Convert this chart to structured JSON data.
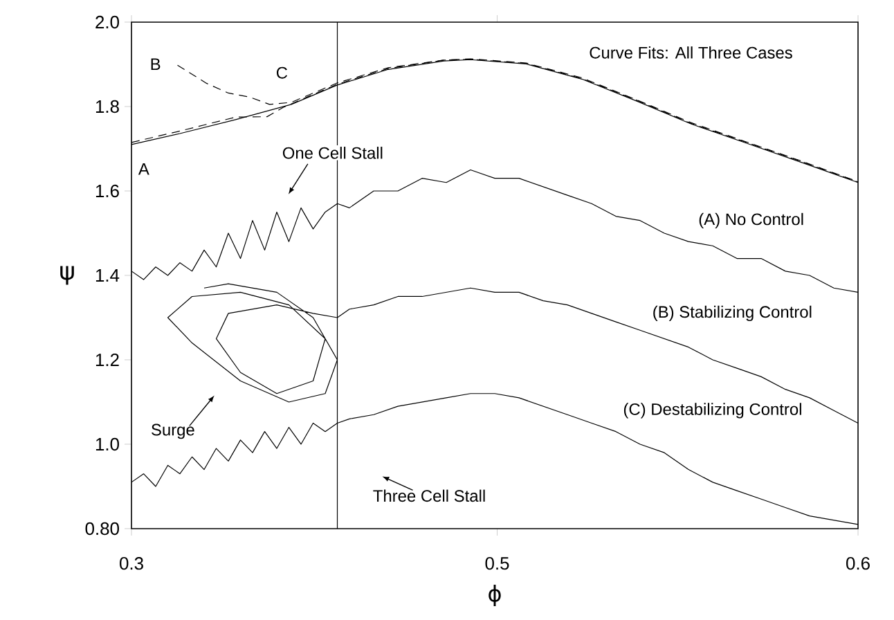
{
  "chart_data": {
    "type": "line",
    "xlabel": "ϕ",
    "ylabel": "ψ",
    "xlim": [
      0.3,
      0.6
    ],
    "ylim": [
      0.8,
      2.0
    ],
    "xticks": [
      0.3,
      {
        "value": 0.451,
        "label": "0.5"
      },
      0.6
    ],
    "yticks": [
      {
        "value": 0.8,
        "label": "0.80"
      },
      {
        "value": 1,
        "label": "1.0"
      },
      1.2,
      1.4,
      1.6,
      1.8,
      {
        "value": 2,
        "label": "2.0"
      }
    ],
    "grid": false,
    "marker": "none",
    "ref_lines": [
      {
        "axis": "x",
        "value": 0.385,
        "color": "#000000"
      }
    ],
    "series": [
      {
        "color": "#000000",
        "line_style": "solid",
        "x": [
          0.3,
          0.32,
          0.343,
          0.366,
          0.385,
          0.406,
          0.429,
          0.44,
          0.463,
          0.486,
          0.509,
          0.531,
          0.554,
          0.577,
          0.6
        ],
        "values": [
          1.71,
          1.736,
          1.769,
          1.805,
          1.851,
          1.888,
          1.908,
          1.911,
          1.901,
          1.865,
          1.812,
          1.759,
          1.713,
          1.667,
          1.62
        ]
      },
      {
        "color": "#000000",
        "line_style": "dashed",
        "x": [
          0.319,
          0.331,
          0.34,
          0.349,
          0.357,
          0.366,
          0.385,
          0.406,
          0.429,
          0.44,
          0.463,
          0.486,
          0.509,
          0.531,
          0.554,
          0.577,
          0.6
        ],
        "values": [
          1.898,
          1.855,
          1.832,
          1.822,
          1.805,
          1.81,
          1.856,
          1.892,
          1.91,
          1.913,
          1.903,
          1.868,
          1.815,
          1.762,
          1.716,
          1.67,
          1.622
        ]
      },
      {
        "color": "#000000",
        "line_style": "dashed",
        "x": [
          0.3,
          0.32,
          0.343,
          0.356,
          0.363,
          0.385,
          0.406,
          0.429,
          0.44,
          0.463,
          0.486,
          0.509,
          0.531,
          0.554,
          0.577,
          0.6
        ],
        "values": [
          1.715,
          1.742,
          1.775,
          1.776,
          1.799,
          1.853,
          1.89,
          1.91,
          1.912,
          1.902,
          1.866,
          1.814,
          1.76,
          1.715,
          1.669,
          1.621
        ]
      },
      {
        "color": "#000000",
        "line_style": "solid",
        "x": [
          0.3,
          0.305,
          0.31,
          0.315,
          0.32,
          0.325,
          0.33,
          0.335,
          0.34,
          0.345,
          0.35,
          0.355,
          0.36,
          0.365,
          0.37,
          0.375,
          0.38,
          0.385,
          0.39,
          0.4,
          0.41,
          0.42,
          0.43,
          0.44,
          0.45,
          0.46,
          0.47,
          0.48,
          0.49,
          0.5,
          0.51,
          0.52,
          0.53,
          0.54,
          0.55,
          0.56,
          0.57,
          0.58,
          0.59,
          0.6
        ],
        "values": [
          1.41,
          1.39,
          1.42,
          1.4,
          1.43,
          1.41,
          1.46,
          1.42,
          1.5,
          1.44,
          1.53,
          1.46,
          1.55,
          1.48,
          1.56,
          1.51,
          1.55,
          1.57,
          1.56,
          1.6,
          1.6,
          1.63,
          1.62,
          1.65,
          1.63,
          1.63,
          1.61,
          1.59,
          1.57,
          1.54,
          1.53,
          1.5,
          1.48,
          1.47,
          1.44,
          1.44,
          1.41,
          1.4,
          1.37,
          1.36
        ]
      },
      {
        "color": "#000000",
        "line_style": "solid",
        "x": [
          0.33,
          0.34,
          0.36,
          0.375,
          0.385,
          0.38,
          0.365,
          0.345,
          0.325,
          0.315,
          0.325,
          0.345,
          0.365,
          0.38,
          0.375,
          0.36,
          0.345,
          0.335,
          0.34,
          0.36,
          0.375,
          0.385,
          0.39,
          0.4,
          0.41,
          0.42,
          0.43,
          0.44,
          0.45,
          0.46,
          0.47,
          0.48,
          0.49,
          0.5,
          0.51,
          0.52,
          0.53,
          0.54,
          0.55,
          0.56,
          0.57,
          0.58,
          0.59,
          0.6
        ],
        "values": [
          1.37,
          1.38,
          1.36,
          1.3,
          1.2,
          1.12,
          1.1,
          1.15,
          1.24,
          1.3,
          1.35,
          1.36,
          1.33,
          1.25,
          1.15,
          1.12,
          1.17,
          1.25,
          1.31,
          1.33,
          1.31,
          1.3,
          1.32,
          1.33,
          1.35,
          1.35,
          1.36,
          1.37,
          1.36,
          1.36,
          1.34,
          1.33,
          1.31,
          1.29,
          1.27,
          1.25,
          1.23,
          1.2,
          1.18,
          1.16,
          1.13,
          1.11,
          1.08,
          1.05
        ]
      },
      {
        "color": "#000000",
        "line_style": "solid",
        "x": [
          0.3,
          0.305,
          0.31,
          0.315,
          0.32,
          0.325,
          0.33,
          0.335,
          0.34,
          0.345,
          0.35,
          0.355,
          0.36,
          0.365,
          0.37,
          0.375,
          0.38,
          0.385,
          0.39,
          0.4,
          0.41,
          0.42,
          0.43,
          0.44,
          0.45,
          0.46,
          0.47,
          0.48,
          0.49,
          0.5,
          0.51,
          0.52,
          0.53,
          0.54,
          0.55,
          0.56,
          0.57,
          0.58,
          0.59,
          0.6
        ],
        "values": [
          0.91,
          0.93,
          0.9,
          0.95,
          0.93,
          0.97,
          0.94,
          0.99,
          0.96,
          1.01,
          0.98,
          1.03,
          0.99,
          1.04,
          1.0,
          1.05,
          1.03,
          1.05,
          1.06,
          1.07,
          1.09,
          1.1,
          1.11,
          1.12,
          1.12,
          1.11,
          1.09,
          1.07,
          1.05,
          1.03,
          1.0,
          0.98,
          0.94,
          0.91,
          0.89,
          0.87,
          0.85,
          0.83,
          0.82,
          0.81
        ]
      }
    ],
    "annotations": [
      "Curve Fits: All Three Cases",
      "A",
      "B",
      "C",
      "One Cell Stall",
      "(A) No Control",
      "(B) Stabilizing Control",
      "(C) Destabilizing Control",
      "Surge",
      "Three Cell Stall"
    ]
  }
}
